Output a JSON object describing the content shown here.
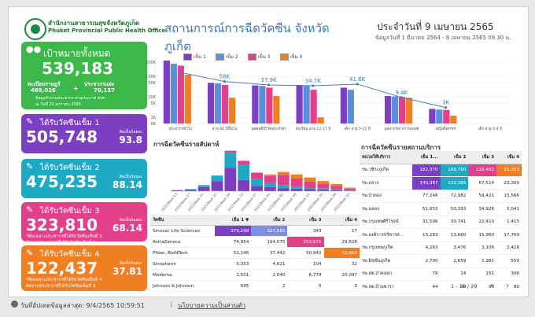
{
  "header": {
    "org_th": "สำนักงานสาธารณสุขจังหวัดภูเก็ต",
    "org_en": "Phuket Provincial Public Health Office",
    "title_line1": "สถานการณ์การฉีดวัคซีน จังหวัด",
    "title_line2": "ภูเก็ต",
    "date_title": "ประจำวันที่ 9 เมษายน 2565",
    "date_sub": "ข้อมูลวันที่ 1 มีนาคม 2564 - 8 เมษายน 2565 09.30 น."
  },
  "target_card": {
    "label": "เป้าหมายทั้งหมด",
    "value": "539,183",
    "reg_label": "ทะเบียนราษฎร์",
    "reg_value": "469,026",
    "plus": "+",
    "pop_label": "ประชากรแฝง",
    "pop_value": "70,157",
    "note1": "ข้อมูลจำนวนประชากร ตามประกาศ ศบค.",
    "note2": "ณ วันที่ 20 มกราคม 2565",
    "color": "#3cb74a"
  },
  "dose_cards": [
    {
      "label": "ได้รับวัคซีนเข็ม 1",
      "value": "505,748",
      "pct": "93.8",
      "pct_label": "คิดเป็นร้อยละ",
      "note1": "",
      "note2": "",
      "color": "#7d3fc2"
    },
    {
      "label": "ได้รับวัคซีนเข็ม 2",
      "value": "475,235",
      "pct": "88.14",
      "pct_label": "คิดเป็นร้อยละ",
      "note1": "",
      "note2": "",
      "color": "#1ea9c4"
    },
    {
      "label": "ได้รับวัคซีนเข็ม 3",
      "value": "323,810",
      "pct": "68.14",
      "pct_label": "คิดเป็นร้อยละ",
      "note1": "*คิดเฉพาะประชากรที่ได้รับวัคซีนเข็มที่ 3",
      "note2": "คิดจากประชากรที่ได้รับวัคซีนเข็มที่ 2",
      "color": "#e43f8a"
    },
    {
      "label": "ได้รับวัคซีนเข็ม 4",
      "value": "122,437",
      "pct": "37.81",
      "pct_label": "คิดเป็นร้อยละ",
      "note1": "*คิดเฉพาะประชากรที่ได้รับวัคซีนเข็มที่ 4",
      "note2": "คิดจากประชากรที่ได้รับวัคซีนเข็มที่ 3",
      "color": "#f07f24"
    }
  ],
  "legend": {
    "items": [
      "เข็ม 1",
      "เข็ม 2",
      "เข็ม 3",
      "เข็ม 4"
    ]
  },
  "chart_data": [
    {
      "type": "bar",
      "categories": [
        "ประชากรทั่วไป",
        "อายุ 60 ปีขึ้นไป",
        "บุคคลที่มีโรคประจำตัว",
        "นักเรียน อายุ 12-17 ปี",
        "เด็ก อายุ 5-11 ปี",
        "บุคลากรทางการแพทย์",
        "หญิงตั้งครรภ์",
        "เด็ก อายุ 0-4 ปี"
      ],
      "series": [
        {
          "name": "เข็ม 1",
          "values": [
            590000,
            48000,
            36000,
            38000,
            28000,
            11000,
            2600,
            0
          ],
          "color": "#7d3fc2"
        },
        {
          "name": "เข็ม 2",
          "values": [
            410000,
            45000,
            34000,
            34000,
            22000,
            10500,
            2400,
            0
          ],
          "color": "#5b8fdc"
        },
        {
          "name": "เข็ม 3",
          "values": [
            330000,
            38000,
            28000,
            22000,
            0,
            9800,
            2300,
            0
          ],
          "color": "#e43f8a"
        },
        {
          "name": "เข็ม 4",
          "values": [
            120000,
            9000,
            11000,
            1000,
            0,
            9000,
            1200,
            0
          ],
          "color": "#f07f24"
        }
      ],
      "line_labels": [
        "",
        "56K",
        "37.9K",
        "34.7K",
        "41.6K",
        "9.4K",
        "3K",
        ""
      ],
      "line_values": [
        155000,
        56000,
        37900,
        34700,
        41600,
        9400,
        3000,
        0
      ],
      "ytick_labels": [
        "500K",
        "100K",
        "50K",
        "10K",
        "5K",
        "1K",
        "0K"
      ],
      "yscale": "log",
      "legend": "top"
    },
    {
      "type": "bar",
      "title": "การฉีดวัคซีนรายสัปดาห์",
      "categories": [
        "2021Week 13",
        "2021Week 17",
        "2021Week 21",
        "2021Week 25",
        "2021Week 29",
        "2021Week 33",
        "2021Week 37",
        "2021Week 41",
        "2021Week 45",
        "2021Week 49",
        "2022Week 01",
        "2022Week 05",
        "2022Week 09",
        "2022Week 13"
      ],
      "series": [
        {
          "name": "เข็ม 1",
          "values": [
            2,
            3,
            8,
            20,
            46,
            22,
            10,
            8,
            6,
            5,
            4,
            3,
            2,
            1
          ],
          "color": "#7d3fc2"
        },
        {
          "name": "เข็ม 2",
          "values": [
            0,
            1,
            4,
            10,
            30,
            30,
            14,
            8,
            6,
            4,
            3,
            3,
            2,
            1
          ],
          "color": "#1ea9c4"
        },
        {
          "name": "เข็ม 3",
          "values": [
            0,
            0,
            0,
            1,
            4,
            8,
            12,
            14,
            20,
            16,
            12,
            8,
            6,
            3
          ],
          "color": "#e43f8a"
        },
        {
          "name": "เข็ม 4",
          "values": [
            0,
            0,
            0,
            0,
            0,
            0,
            1,
            3,
            6,
            8,
            8,
            6,
            4,
            2
          ],
          "color": "#f07f24"
        }
      ]
    }
  ],
  "vaccine_table": {
    "headers": [
      "วัคซีน",
      "เข็ม 1 ▼",
      "เข็ม 2",
      "เข็ม 3",
      "เข็ม 4"
    ],
    "rows": [
      [
        "Sinovac Life Sciences",
        "370,299",
        "327,055",
        "343",
        "17"
      ],
      [
        "AstraZeneca",
        "74,954",
        "104,075",
        "253,671",
        "29,628"
      ],
      [
        "Pfizer, BioNTech",
        "52,146",
        "37,442",
        "50,942",
        "72,663"
      ],
      [
        "Sinopharm",
        "5,353",
        "4,621",
        "104",
        "32"
      ],
      [
        "Moderna",
        "2,501",
        "2,040",
        "6,778",
        "20,097"
      ],
      [
        "Johnson & Johnson",
        "695",
        "2",
        "0",
        "0"
      ]
    ],
    "highlights": [
      [
        0,
        1,
        "#7d3fc2"
      ],
      [
        0,
        2,
        "#7d8fe0"
      ],
      [
        1,
        3,
        "#e43f8a"
      ],
      [
        2,
        4,
        "#f07f24"
      ]
    ]
  },
  "service_table": {
    "title": "การฉีดวัคซีนรายสถานบริการ",
    "headers": [
      "หน่วยให้บริการ",
      "เข็ม 1...",
      "เข็ม 2",
      "เข็ม 3",
      "เข็ม 4"
    ],
    "rows": [
      [
        "รพ.วชิระภูเก็ต",
        "182,370",
        "168,760",
        "118,482",
        "55,353"
      ],
      [
        "รพ.ถลาง",
        "140,367",
        "132,385",
        "67,514",
        "23,309"
      ],
      [
        "รพ.ป่าตอง",
        "77,246",
        "72,982",
        "59,421",
        "15,566"
      ],
      [
        "รพ.ฉลอง",
        "51,653",
        "50,393",
        "34,926",
        "5,041"
      ],
      [
        "รพ.กรุงเทพศิริโรจน์",
        "31,506",
        "30,741",
        "22,410",
        "1,415"
      ],
      [
        "รพ.องค์การบริหารส่...",
        "15,283",
        "13,660",
        "15,960",
        "17,769"
      ],
      [
        "รพ.กรุงเทพภูเก็ต",
        "4,263",
        "3,476",
        "3,106",
        "2,428"
      ],
      [
        "รพ.มิชชั่นภูเก็ต",
        "2,700",
        "2,659",
        "2,981",
        "559"
      ],
      [
        "รพ.สต.ป่าคลอก",
        "79",
        "14",
        "151",
        "306"
      ],
      [
        "รพ.สต.บ้านพารา",
        "44",
        "20",
        "90",
        "80"
      ]
    ],
    "pagination": "1 - 10 / 29",
    "prev": "‹",
    "next": "›"
  },
  "footer": {
    "updated": "วันที่อัปเดตข้อมูลล่าสุด: 9/4/2565 10:59:51",
    "separator": "|",
    "policy": "นโยบายความเป็นส่วนตัว"
  }
}
